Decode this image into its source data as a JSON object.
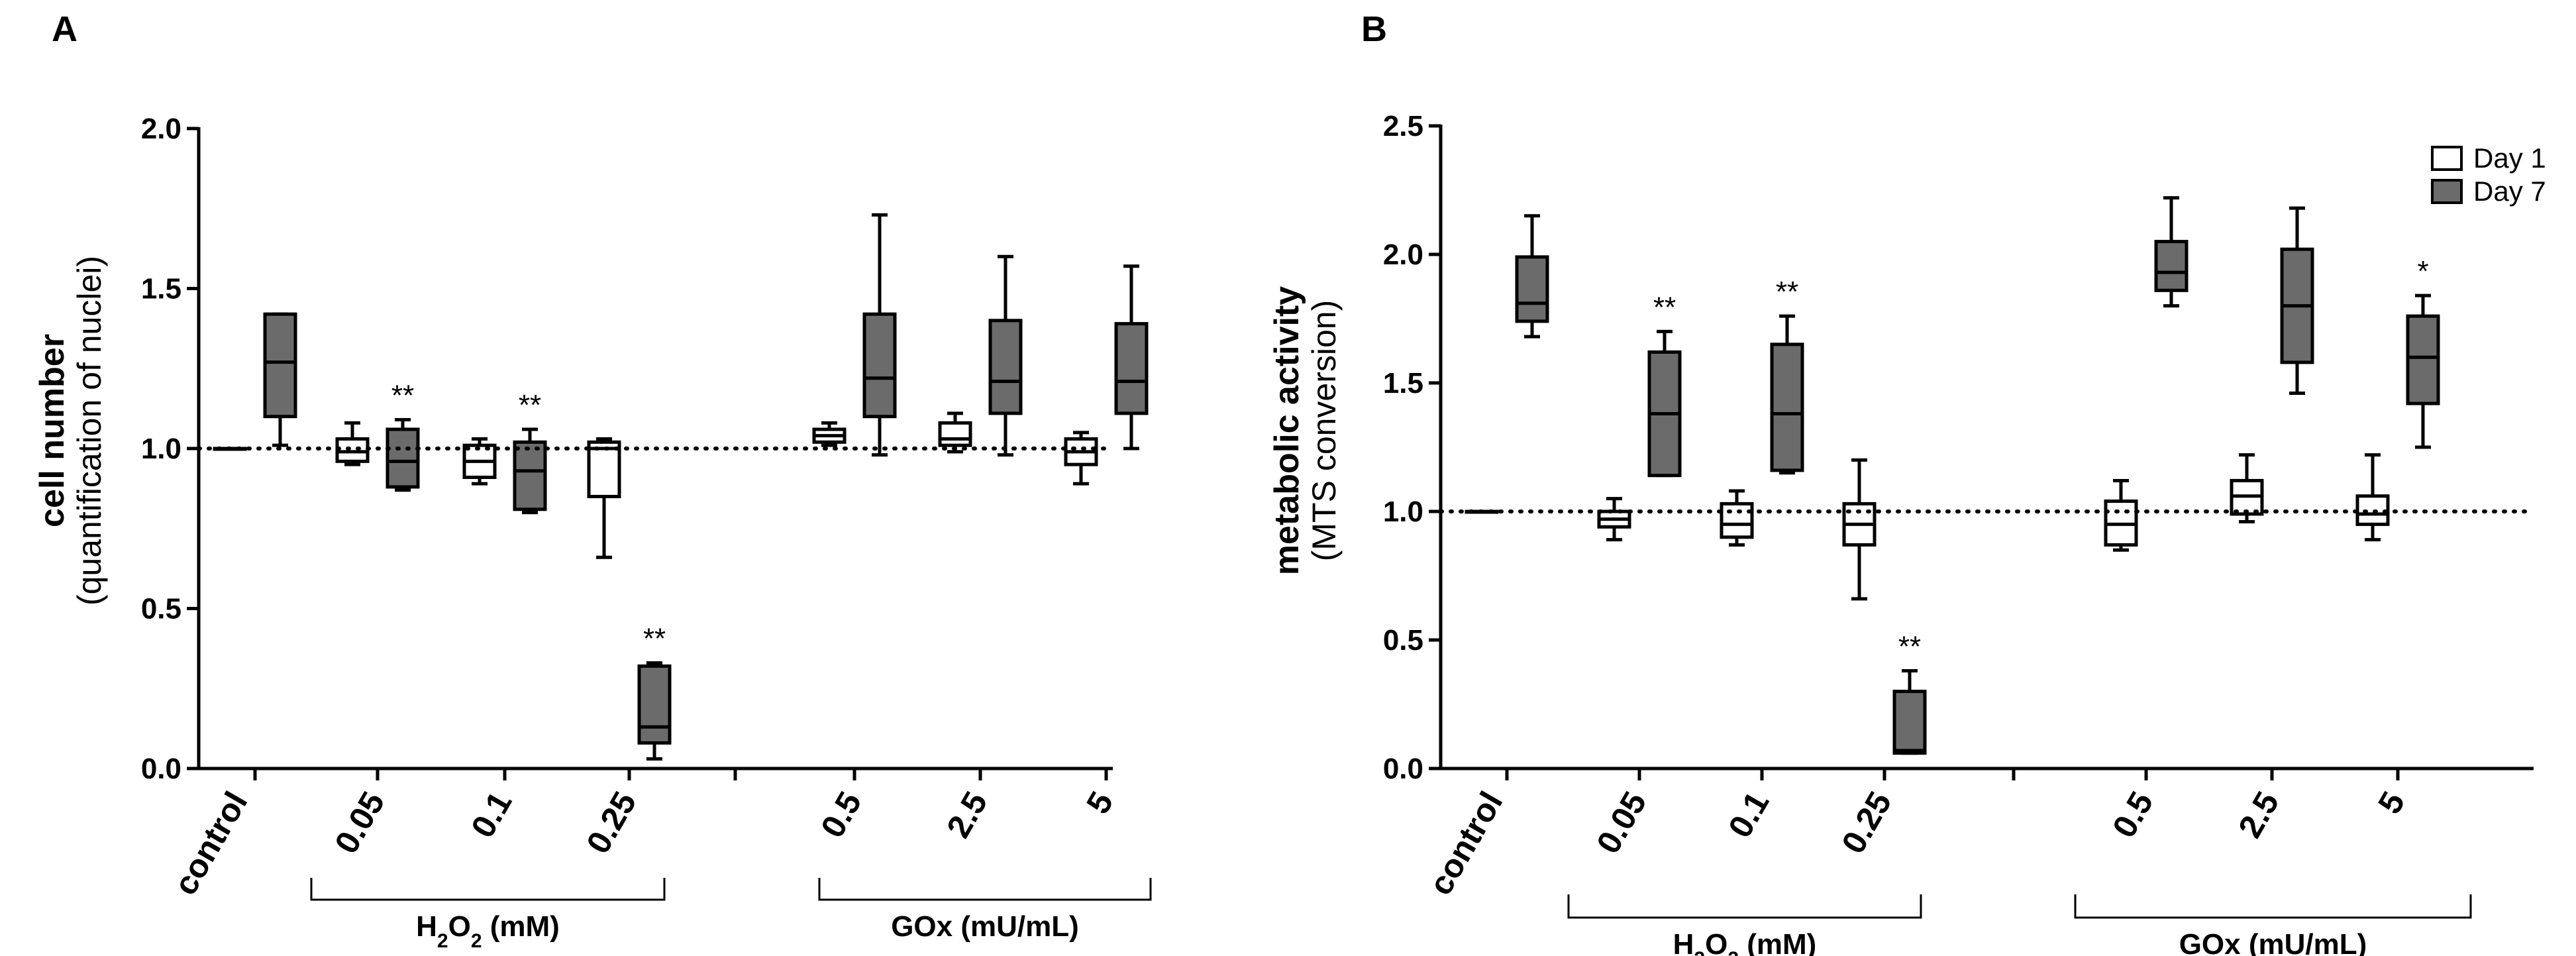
{
  "chart_data": [
    {
      "panel": "A",
      "type": "boxplot",
      "ylabel": "cell number",
      "ylabel_sub": "(quantification of nuclei)",
      "ylim": [
        0,
        2.0
      ],
      "yticks": [
        "0.0",
        "0.5",
        "1.0",
        "1.5",
        "2.0"
      ],
      "reference_line": 1.0,
      "categories": [
        "control",
        "0.05",
        "0.1",
        "0.25",
        "0.5",
        "2.5",
        "5"
      ],
      "groups": [
        {
          "label_pre": "H",
          "label_sub": "2",
          "label_mid": "O",
          "label_sub2": "2",
          "label_post": " (mM)",
          "categories": [
            "0.05",
            "0.1",
            "0.25"
          ]
        },
        {
          "label_pre": "GOx (mU/mL)",
          "label_sub": "",
          "label_mid": "",
          "label_sub2": "",
          "label_post": "",
          "categories": [
            "0.5",
            "2.5",
            "5"
          ]
        }
      ],
      "series": [
        {
          "name": "Day 1",
          "boxes": [
            {
              "category": "control",
              "min": 1.0,
              "q1": 1.0,
              "median": 1.0,
              "q3": 1.0,
              "max": 1.0
            },
            {
              "category": "0.05",
              "min": 0.95,
              "q1": 0.96,
              "median": 0.99,
              "q3": 1.03,
              "max": 1.08
            },
            {
              "category": "0.1",
              "min": 0.89,
              "q1": 0.91,
              "median": 0.96,
              "q3": 1.01,
              "max": 1.03
            },
            {
              "category": "0.25",
              "min": 0.66,
              "q1": 0.85,
              "median": 1.0,
              "q3": 1.02,
              "max": 1.03
            },
            {
              "category": "0.5",
              "min": 1.01,
              "q1": 1.02,
              "median": 1.04,
              "q3": 1.06,
              "max": 1.08
            },
            {
              "category": "2.5",
              "min": 0.99,
              "q1": 1.01,
              "median": 1.03,
              "q3": 1.08,
              "max": 1.11
            },
            {
              "category": "5",
              "min": 0.89,
              "q1": 0.95,
              "median": 0.99,
              "q3": 1.03,
              "max": 1.05
            }
          ]
        },
        {
          "name": "Day 7",
          "boxes": [
            {
              "category": "control",
              "min": 1.01,
              "q1": 1.1,
              "median": 1.27,
              "q3": 1.42,
              "max": 1.42
            },
            {
              "category": "0.05",
              "min": 0.87,
              "q1": 0.88,
              "median": 0.96,
              "q3": 1.06,
              "max": 1.09,
              "sig": "**"
            },
            {
              "category": "0.1",
              "min": 0.8,
              "q1": 0.81,
              "median": 0.93,
              "q3": 1.02,
              "max": 1.06,
              "sig": "**"
            },
            {
              "category": "0.25",
              "min": 0.03,
              "q1": 0.08,
              "median": 0.13,
              "q3": 0.32,
              "max": 0.33,
              "sig": "**"
            },
            {
              "category": "0.5",
              "min": 0.98,
              "q1": 1.1,
              "median": 1.22,
              "q3": 1.42,
              "max": 1.73
            },
            {
              "category": "2.5",
              "min": 0.98,
              "q1": 1.11,
              "median": 1.21,
              "q3": 1.4,
              "max": 1.6
            },
            {
              "category": "5",
              "min": 1.0,
              "q1": 1.11,
              "median": 1.21,
              "q3": 1.39,
              "max": 1.57
            }
          ]
        }
      ]
    },
    {
      "panel": "B",
      "type": "boxplot",
      "ylabel": "metabolic activity",
      "ylabel_sub": "(MTS conversion)",
      "ylim": [
        0,
        2.5
      ],
      "yticks": [
        "0.0",
        "0.5",
        "1.0",
        "1.5",
        "2.0",
        "2.5"
      ],
      "reference_line": 1.0,
      "categories": [
        "control",
        "0.05",
        "0.1",
        "0.25",
        "0.5",
        "2.5",
        "5"
      ],
      "groups": [
        {
          "label_pre": "H",
          "label_sub": "2",
          "label_mid": "O",
          "label_sub2": "2",
          "label_post": " (mM)",
          "categories": [
            "0.05",
            "0.1",
            "0.25"
          ]
        },
        {
          "label_pre": "GOx (mU/mL)",
          "label_sub": "",
          "label_mid": "",
          "label_sub2": "",
          "label_post": "",
          "categories": [
            "0.5",
            "2.5",
            "5"
          ]
        }
      ],
      "legend": {
        "position": "top-right",
        "entries": [
          "Day 1",
          "Day 7"
        ]
      },
      "series": [
        {
          "name": "Day 1",
          "boxes": [
            {
              "category": "control",
              "min": 1.0,
              "q1": 1.0,
              "median": 1.0,
              "q3": 1.0,
              "max": 1.0
            },
            {
              "category": "0.05",
              "min": 0.89,
              "q1": 0.94,
              "median": 0.97,
              "q3": 1.0,
              "max": 1.05
            },
            {
              "category": "0.1",
              "min": 0.87,
              "q1": 0.9,
              "median": 0.95,
              "q3": 1.03,
              "max": 1.08
            },
            {
              "category": "0.25",
              "min": 0.66,
              "q1": 0.87,
              "median": 0.95,
              "q3": 1.03,
              "max": 1.2
            },
            {
              "category": "0.5",
              "min": 0.85,
              "q1": 0.87,
              "median": 0.95,
              "q3": 1.04,
              "max": 1.12
            },
            {
              "category": "2.5",
              "min": 0.96,
              "q1": 0.99,
              "median": 1.06,
              "q3": 1.12,
              "max": 1.22
            },
            {
              "category": "5",
              "min": 0.89,
              "q1": 0.95,
              "median": 0.99,
              "q3": 1.06,
              "max": 1.22
            }
          ]
        },
        {
          "name": "Day 7",
          "boxes": [
            {
              "category": "control",
              "min": 1.68,
              "q1": 1.74,
              "median": 1.81,
              "q3": 1.99,
              "max": 2.15
            },
            {
              "category": "0.05",
              "min": 1.14,
              "q1": 1.14,
              "median": 1.38,
              "q3": 1.62,
              "max": 1.7,
              "sig": "**"
            },
            {
              "category": "0.1",
              "min": 1.15,
              "q1": 1.16,
              "median": 1.38,
              "q3": 1.65,
              "max": 1.76,
              "sig": "**"
            },
            {
              "category": "0.25",
              "min": 0.06,
              "q1": 0.06,
              "median": 0.07,
              "q3": 0.3,
              "max": 0.38,
              "sig": "**"
            },
            {
              "category": "0.5",
              "min": 1.8,
              "q1": 1.86,
              "median": 1.93,
              "q3": 2.05,
              "max": 2.22
            },
            {
              "category": "2.5",
              "min": 1.46,
              "q1": 1.58,
              "median": 1.8,
              "q3": 2.02,
              "max": 2.18
            },
            {
              "category": "5",
              "min": 1.25,
              "q1": 1.42,
              "median": 1.6,
              "q3": 1.76,
              "max": 1.84,
              "sig": "*"
            }
          ]
        }
      ]
    }
  ],
  "colors": {
    "day1_fill": "#ffffff",
    "day7_fill": "#6b6b6b",
    "stroke": "#000000"
  }
}
